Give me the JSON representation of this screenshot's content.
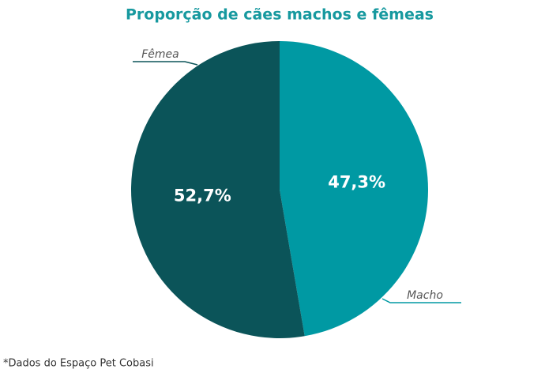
{
  "chart_data": {
    "type": "pie",
    "title": "Proporção de cães machos e fêmeas",
    "categories": [
      "Macho",
      "Fêmea"
    ],
    "values": [
      47.3,
      52.7
    ],
    "value_labels": [
      "47,3%",
      "52,7%"
    ],
    "colors": [
      "#0099a3",
      "#0b5459"
    ],
    "note": "*Dados do Espaço Pet Cobasi"
  }
}
